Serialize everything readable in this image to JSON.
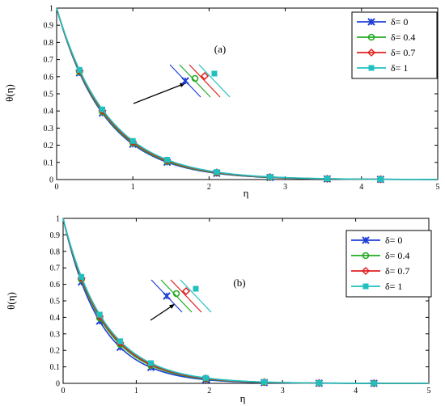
{
  "chart_data": [
    {
      "type": "line",
      "panel_label": "(a)",
      "xlabel": "η",
      "ylabel": "θ(η)",
      "xlim": [
        0,
        5
      ],
      "ylim": [
        0,
        1
      ],
      "xticks": [
        "0",
        "1",
        "2",
        "3",
        "4",
        "5"
      ],
      "yticks": [
        "0",
        "0.1",
        "0.2",
        "0.3",
        "0.4",
        "0.5",
        "0.6",
        "0.7",
        "0.8",
        "0.9",
        "1"
      ],
      "legend_position": "top-right",
      "decay": [
        1.58,
        1.55,
        1.52,
        1.49
      ],
      "marker_x": [
        0.3,
        0.6,
        1.0,
        1.45,
        2.1,
        2.8,
        3.55,
        4.25
      ],
      "series": [
        {
          "name": "δ= 0",
          "color": "#1f3fd6",
          "marker": "x-star"
        },
        {
          "name": "δ= 0.4",
          "color": "#22aa22",
          "marker": "circle"
        },
        {
          "name": "δ= 0.7",
          "color": "#e02020",
          "marker": "diamond"
        },
        {
          "name": "δ= 1",
          "color": "#20c0c0",
          "marker": "square"
        }
      ],
      "annotation_arrow": "increasing δ"
    },
    {
      "type": "line",
      "panel_label": "(b)",
      "xlabel": "η",
      "ylabel": "θ(η)",
      "xlim": [
        0,
        5
      ],
      "ylim": [
        0,
        1
      ],
      "xticks": [
        "0",
        "1",
        "2",
        "3",
        "4",
        "5"
      ],
      "yticks": [
        "0",
        "0.1",
        "0.2",
        "0.3",
        "0.4",
        "0.5",
        "0.6",
        "0.7",
        "0.8",
        "0.9",
        "1"
      ],
      "legend_position": "top-right",
      "decay": [
        1.95,
        1.85,
        1.8,
        1.75
      ],
      "marker_x": [
        0.25,
        0.5,
        0.78,
        1.2,
        1.95,
        2.75,
        3.5,
        4.25
      ],
      "series": [
        {
          "name": "δ= 0",
          "color": "#1f3fd6",
          "marker": "x-star"
        },
        {
          "name": "δ= 0.4",
          "color": "#22aa22",
          "marker": "circle"
        },
        {
          "name": "δ= 0.7",
          "color": "#e02020",
          "marker": "diamond"
        },
        {
          "name": "δ= 1",
          "color": "#20c0c0",
          "marker": "square"
        }
      ],
      "annotation_arrow": "increasing δ"
    }
  ]
}
